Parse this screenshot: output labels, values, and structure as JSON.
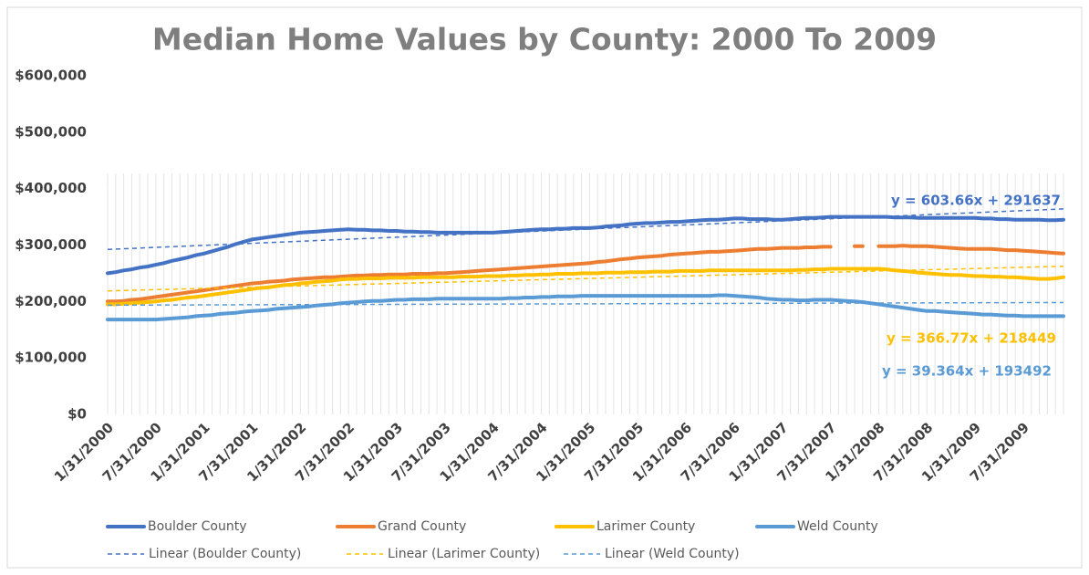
{
  "chart_data": {
    "type": "line",
    "title": "Median Home Values by County: 2000 To 2009",
    "categories": [
      "1/31/2000",
      null,
      null,
      null,
      null,
      null,
      "7/31/2000",
      null,
      null,
      null,
      null,
      null,
      "1/31/2001",
      null,
      null,
      null,
      null,
      null,
      "7/31/2001",
      null,
      null,
      null,
      null,
      null,
      "1/31/2002",
      null,
      null,
      null,
      null,
      null,
      "7/31/2002",
      null,
      null,
      null,
      null,
      null,
      "1/31/2003",
      null,
      null,
      null,
      null,
      null,
      "7/31/2003",
      null,
      null,
      null,
      null,
      null,
      "1/31/2004",
      null,
      null,
      null,
      null,
      null,
      "7/31/2004",
      null,
      null,
      null,
      null,
      null,
      "1/31/2005",
      null,
      null,
      null,
      null,
      null,
      "7/31/2005",
      null,
      null,
      null,
      null,
      null,
      "1/31/2006",
      null,
      null,
      null,
      null,
      null,
      "7/31/2006",
      null,
      null,
      null,
      null,
      null,
      "1/31/2007",
      null,
      null,
      null,
      null,
      null,
      "7/31/2007",
      null,
      null,
      null,
      null,
      null,
      "1/31/2008",
      null,
      null,
      null,
      null,
      null,
      "7/31/2008",
      null,
      null,
      null,
      null,
      null,
      "1/31/2009",
      null,
      null,
      null,
      null,
      null,
      "7/31/2009",
      null,
      null,
      null,
      null,
      null
    ],
    "series": [
      {
        "name": "Boulder County",
        "color": "#4472c4",
        "values": [
          250000,
          252000,
          255000,
          257000,
          260000,
          262000,
          265000,
          268000,
          272000,
          275000,
          278000,
          282000,
          285000,
          289000,
          293000,
          297000,
          302000,
          306000,
          310000,
          312000,
          314000,
          316000,
          318000,
          320000,
          322000,
          323000,
          324000,
          325000,
          326000,
          327000,
          328000,
          327000,
          327000,
          326000,
          326000,
          325000,
          325000,
          324000,
          324000,
          323000,
          323000,
          322000,
          322000,
          322000,
          322000,
          322000,
          322000,
          322000,
          322000,
          323000,
          324000,
          325000,
          326000,
          327000,
          328000,
          328000,
          329000,
          329000,
          330000,
          330000,
          330000,
          331000,
          333000,
          334000,
          335000,
          337000,
          338000,
          339000,
          339000,
          340000,
          341000,
          341000,
          342000,
          343000,
          344000,
          345000,
          345000,
          346000,
          347000,
          347000,
          346000,
          346000,
          346000,
          345000,
          345000,
          346000,
          347000,
          348000,
          348000,
          349000,
          350000,
          350000,
          350000,
          350000,
          350000,
          350000,
          350000,
          350000,
          349000,
          349000,
          349000,
          348000,
          348000,
          348000,
          348000,
          348000,
          348000,
          348000,
          348000,
          347000,
          347000,
          346000,
          346000,
          345000,
          345000,
          345000,
          345000,
          344000,
          344000,
          345000
        ]
      },
      {
        "name": "Grand County",
        "color": "#ed7d31",
        "values": [
          200000,
          200000,
          201000,
          203000,
          204000,
          206000,
          208000,
          210000,
          212000,
          214000,
          216000,
          218000,
          220000,
          222000,
          224000,
          226000,
          228000,
          230000,
          232000,
          233000,
          235000,
          236000,
          237000,
          239000,
          240000,
          241000,
          242000,
          243000,
          243000,
          244000,
          245000,
          246000,
          246000,
          247000,
          247000,
          248000,
          248000,
          248000,
          249000,
          249000,
          249000,
          250000,
          250000,
          251000,
          252000,
          253000,
          254000,
          255000,
          256000,
          257000,
          258000,
          259000,
          260000,
          261000,
          262000,
          263000,
          264000,
          265000,
          266000,
          267000,
          268000,
          270000,
          271000,
          273000,
          275000,
          276000,
          278000,
          279000,
          280000,
          281000,
          283000,
          284000,
          285000,
          286000,
          287000,
          288000,
          288000,
          289000,
          290000,
          291000,
          292000,
          293000,
          293000,
          294000,
          295000,
          295000,
          295000,
          296000,
          296000,
          297000,
          297000,
          null,
          null,
          298000,
          298000,
          null,
          298000,
          298000,
          298000,
          299000,
          298000,
          298000,
          298000,
          297000,
          296000,
          295000,
          294000,
          293000,
          293000,
          293000,
          293000,
          292000,
          291000,
          291000,
          290000,
          289000,
          288000,
          287000,
          286000,
          285000
        ]
      },
      {
        "name": "Larimer County",
        "color": "#ffc000",
        "values": [
          195000,
          195000,
          196000,
          197000,
          198000,
          199000,
          200000,
          202000,
          203000,
          205000,
          207000,
          208000,
          210000,
          212000,
          214000,
          216000,
          218000,
          220000,
          222000,
          224000,
          225000,
          227000,
          229000,
          230000,
          232000,
          233000,
          235000,
          236000,
          237000,
          239000,
          240000,
          240000,
          241000,
          241000,
          241000,
          242000,
          242000,
          242000,
          242000,
          243000,
          243000,
          243000,
          243000,
          243000,
          244000,
          244000,
          244000,
          245000,
          245000,
          245000,
          246000,
          246000,
          247000,
          247000,
          248000,
          248000,
          249000,
          249000,
          249000,
          250000,
          250000,
          250000,
          251000,
          251000,
          251000,
          252000,
          252000,
          252000,
          253000,
          253000,
          253000,
          254000,
          254000,
          254000,
          254000,
          255000,
          255000,
          255000,
          255000,
          255000,
          255000,
          255000,
          255000,
          255000,
          255000,
          255000,
          256000,
          256000,
          257000,
          257000,
          258000,
          258000,
          258000,
          258000,
          258000,
          258000,
          258000,
          257000,
          255000,
          254000,
          253000,
          251000,
          250000,
          249000,
          248000,
          247000,
          247000,
          246000,
          245000,
          245000,
          244000,
          244000,
          243000,
          243000,
          242000,
          241000,
          240000,
          240000,
          241000,
          243000
        ]
      },
      {
        "name": "Weld County",
        "color": "#5b9bd5",
        "values": [
          168000,
          168000,
          168000,
          168000,
          168000,
          168000,
          168000,
          169000,
          170000,
          171000,
          172000,
          174000,
          175000,
          176000,
          178000,
          179000,
          180000,
          182000,
          183000,
          184000,
          185000,
          187000,
          188000,
          189000,
          190000,
          191000,
          193000,
          194000,
          195000,
          197000,
          198000,
          199000,
          200000,
          201000,
          201000,
          202000,
          203000,
          203000,
          204000,
          204000,
          204000,
          205000,
          205000,
          205000,
          205000,
          205000,
          205000,
          205000,
          205000,
          205000,
          206000,
          206000,
          207000,
          207000,
          208000,
          208000,
          209000,
          209000,
          209000,
          210000,
          210000,
          210000,
          210000,
          210000,
          210000,
          210000,
          210000,
          210000,
          210000,
          210000,
          210000,
          210000,
          210000,
          210000,
          210000,
          210000,
          211000,
          211000,
          210000,
          209000,
          208000,
          207000,
          205000,
          204000,
          203000,
          203000,
          202000,
          202000,
          203000,
          203000,
          203000,
          202000,
          201000,
          200000,
          199000,
          197000,
          195000,
          193000,
          191000,
          189000,
          187000,
          185000,
          183000,
          183000,
          182000,
          181000,
          180000,
          179000,
          178000,
          177000,
          177000,
          176000,
          175000,
          175000,
          174000,
          174000,
          174000,
          174000,
          174000,
          174000
        ]
      }
    ],
    "trendlines": [
      {
        "name": "Linear (Boulder County)",
        "color": "#4472c4",
        "slope": 603.66,
        "intercept": 291637,
        "label": "y = 603.66x + 291637"
      },
      {
        "name": "Linear (Larimer County)",
        "color": "#ffc000",
        "slope": 366.77,
        "intercept": 218449,
        "label": "y = 366.77x + 218449"
      },
      {
        "name": "Linear (Weld County)",
        "color": "#5b9bd5",
        "slope": 39.364,
        "intercept": 193492,
        "label": "y = 39.364x + 193492"
      }
    ],
    "ylim": [
      0,
      600000
    ],
    "yticks": [
      {
        "value": 0,
        "label": "$0"
      },
      {
        "value": 100000,
        "label": "$100,000"
      },
      {
        "value": 200000,
        "label": "$200,000"
      },
      {
        "value": 300000,
        "label": "$300,000"
      },
      {
        "value": 400000,
        "label": "$400,000"
      },
      {
        "value": 500000,
        "label": "$500,000"
      },
      {
        "value": 600000,
        "label": "$600,000"
      }
    ],
    "legend": "bottom"
  }
}
